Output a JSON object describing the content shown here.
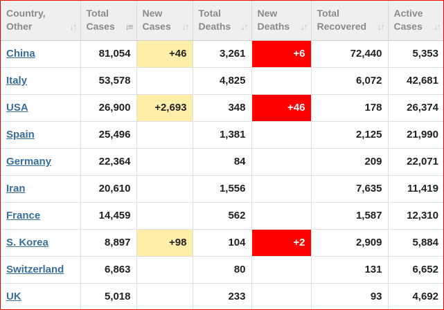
{
  "table": {
    "columns": [
      {
        "line1": "Country,",
        "line2": "Other",
        "sort_icon": "sort-updown-icon",
        "sorted": false
      },
      {
        "line1": "Total",
        "line2": "Cases",
        "sort_icon": "sort-desc-icon",
        "sorted": true
      },
      {
        "line1": "New",
        "line2": "Cases",
        "sort_icon": "sort-updown-icon",
        "sorted": false
      },
      {
        "line1": "Total",
        "line2": "Deaths",
        "sort_icon": "sort-updown-icon",
        "sorted": false
      },
      {
        "line1": "New",
        "line2": "Deaths",
        "sort_icon": "sort-updown-icon",
        "sorted": false
      },
      {
        "line1": "Total",
        "line2": "Recovered",
        "sort_icon": "sort-updown-icon",
        "sorted": false
      },
      {
        "line1": "Active",
        "line2": "Cases",
        "sort_icon": "sort-updown-icon",
        "sorted": false
      }
    ],
    "rows": [
      {
        "country": "China",
        "total_cases": "81,054",
        "new_cases": "+46",
        "total_deaths": "3,261",
        "new_deaths": "+6",
        "total_recovered": "72,440",
        "active_cases": "5,353"
      },
      {
        "country": "Italy",
        "total_cases": "53,578",
        "new_cases": "",
        "total_deaths": "4,825",
        "new_deaths": "",
        "total_recovered": "6,072",
        "active_cases": "42,681"
      },
      {
        "country": "USA",
        "total_cases": "26,900",
        "new_cases": "+2,693",
        "total_deaths": "348",
        "new_deaths": "+46",
        "total_recovered": "178",
        "active_cases": "26,374"
      },
      {
        "country": "Spain",
        "total_cases": "25,496",
        "new_cases": "",
        "total_deaths": "1,381",
        "new_deaths": "",
        "total_recovered": "2,125",
        "active_cases": "21,990"
      },
      {
        "country": "Germany",
        "total_cases": "22,364",
        "new_cases": "",
        "total_deaths": "84",
        "new_deaths": "",
        "total_recovered": "209",
        "active_cases": "22,071"
      },
      {
        "country": "Iran",
        "total_cases": "20,610",
        "new_cases": "",
        "total_deaths": "1,556",
        "new_deaths": "",
        "total_recovered": "7,635",
        "active_cases": "11,419"
      },
      {
        "country": "France",
        "total_cases": "14,459",
        "new_cases": "",
        "total_deaths": "562",
        "new_deaths": "",
        "total_recovered": "1,587",
        "active_cases": "12,310"
      },
      {
        "country": "S. Korea",
        "total_cases": "8,897",
        "new_cases": "+98",
        "total_deaths": "104",
        "new_deaths": "+2",
        "total_recovered": "2,909",
        "active_cases": "5,884"
      },
      {
        "country": "Switzerland",
        "total_cases": "6,863",
        "new_cases": "",
        "total_deaths": "80",
        "new_deaths": "",
        "total_recovered": "131",
        "active_cases": "6,652"
      },
      {
        "country": "UK",
        "total_cases": "5,018",
        "new_cases": "",
        "total_deaths": "233",
        "new_deaths": "",
        "total_recovered": "93",
        "active_cases": "4,692"
      }
    ]
  },
  "colors": {
    "frame_border": "#e60000",
    "header_bg": "#efefef",
    "header_text": "#8a8a8a",
    "link": "#3a6e9e",
    "new_cases_highlight": "#ffeeaa",
    "new_deaths_highlight": "#ff0000"
  }
}
